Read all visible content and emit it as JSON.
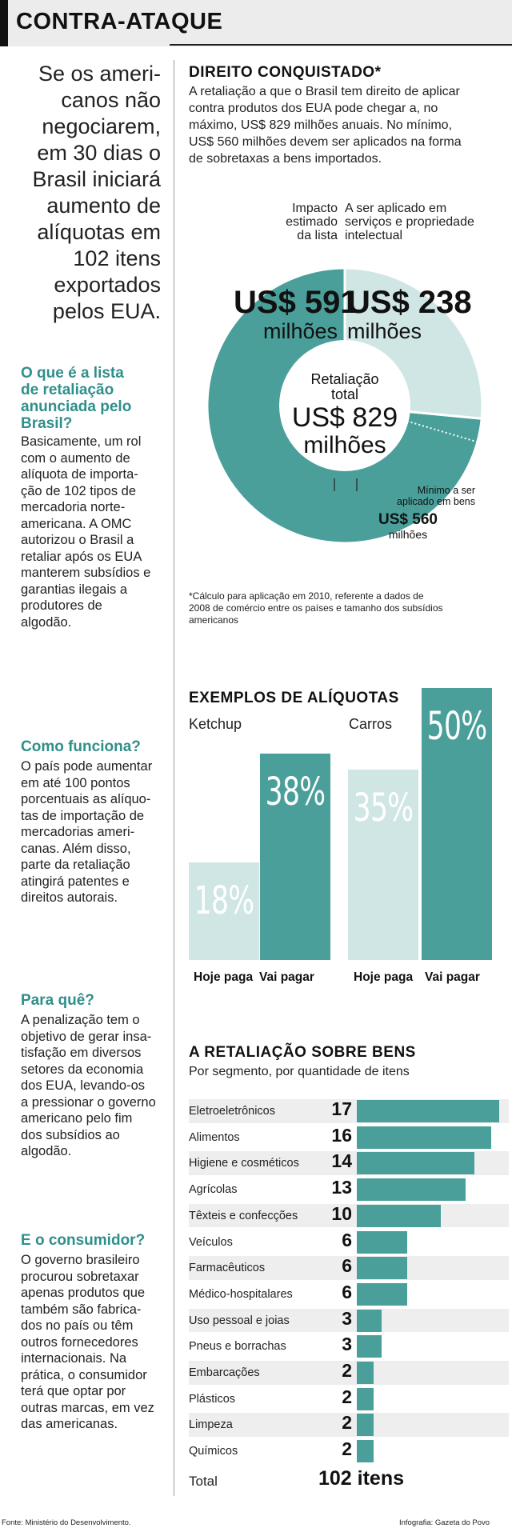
{
  "header": {
    "title": "CONTRA-ATAQUE"
  },
  "lead": [
    "Se os ameri-",
    "canos não",
    "negociarem,",
    "em 30 dias o",
    "Brasil iniciará",
    "aumento de",
    "alíquotas em",
    "102 itens",
    "exportados",
    "pelos EUA."
  ],
  "sections": [
    {
      "title": [
        "O que é a lista",
        "de retaliação",
        "anunciada pelo",
        "Brasil?"
      ],
      "body": [
        "Basicamente, um rol",
        "com o aumento de",
        "alíquota de importa-",
        "ção de 102 tipos de",
        "mercadoria norte-",
        "americana. A OMC",
        "autorizou o Brasil a",
        "retaliar após os EUA",
        "manterem subsídios e",
        "garantias ilegais a",
        "produtores de",
        "algodão."
      ]
    },
    {
      "title": [
        "Como funciona?"
      ],
      "body": [
        "O país pode aumentar",
        "em até 100 pontos",
        "porcentuais as alíquo-",
        "tas de importação de",
        "mercadorias ameri-",
        "canas. Além disso,",
        "parte da retaliação",
        "atingirá patentes e",
        "direitos autorais."
      ]
    },
    {
      "title": [
        "Para quê?"
      ],
      "body": [
        "A penalização tem o",
        "objetivo de gerar insa-",
        "tisfação em diversos",
        "setores da economia",
        "dos EUA, levando-os",
        "a pressionar o governo",
        "americano pelo fim",
        "dos subsídios ao",
        "algodão."
      ]
    },
    {
      "title": [
        "E o consumidor?"
      ],
      "body": [
        "O governo brasileiro",
        "procurou sobretaxar",
        "apenas produtos que",
        "também são fabrica-",
        "dos no país ou têm",
        "outros fornecedores",
        "internacionais. Na",
        "prática, o consumidor",
        "terá que optar por",
        "outras marcas, em vez",
        "das americanas."
      ]
    }
  ],
  "direito": {
    "title": "DIREITO CONQUISTADO*",
    "text": [
      "A retaliação a que o Brasil tem direito de aplicar",
      "contra produtos dos EUA pode chegar a, no",
      "máximo, US$ 829 milhões anuais. No mínimo,",
      "US$ 560 milhões devem ser aplicados na forma",
      "de sobretaxas a bens importados."
    ],
    "label_impacto": [
      "Impacto",
      "estimado",
      "da lista"
    ],
    "label_servicos": [
      "A ser aplicado em",
      "serviços e propriedade",
      "intelectual"
    ],
    "val_591": "US$ 591",
    "val_591_unit": "milhões",
    "val_238": "US$ 238",
    "val_238_unit": "milhões",
    "center_label": [
      "Retaliação",
      "total"
    ],
    "center_value": "US$ 829",
    "center_unit": "milhões",
    "min_label": [
      "Mínimo a ser",
      "aplicado em bens"
    ],
    "val_560": "US$ 560",
    "val_560_unit": "milhões",
    "footnote": [
      "*Cálculo para aplicação em 2010, referente a dados de",
      "2008 de comércio entre os países e tamanho dos subsídios",
      "americanos"
    ]
  },
  "exemplos": {
    "title": "EXEMPLOS DE ALÍQUOTAS",
    "groups": [
      {
        "name": "Ketchup",
        "hoje": "18%",
        "vai": "38%",
        "hoje_v": 18,
        "vai_v": 38
      },
      {
        "name": "Carros",
        "hoje": "35%",
        "vai": "50%",
        "hoje_v": 35,
        "vai_v": 50
      }
    ],
    "cap_hoje": "Hoje paga",
    "cap_vai": "Vai pagar"
  },
  "retaliacao": {
    "title": "A RETALIAÇÃO SOBRE BENS",
    "subtitle": "Por segmento, por quantidade de itens",
    "total_label": "Total",
    "total_value": "102 itens"
  },
  "chart_data": {
    "type": "bar",
    "title": "A RETALIAÇÃO SOBRE BENS",
    "subtitle": "Por segmento, por quantidade de itens",
    "categories": [
      "Eletroeletrônicos",
      "Alimentos",
      "Higiene e cosméticos",
      "Agrícolas",
      "Têxteis e confecções",
      "Veículos",
      "Farmacêuticos",
      "Médico-hospitalares",
      "Uso pessoal e joias",
      "Pneus e borrachas",
      "Embarcações",
      "Plásticos",
      "Limpeza",
      "Químicos"
    ],
    "values": [
      17,
      16,
      14,
      13,
      10,
      6,
      6,
      6,
      3,
      3,
      2,
      2,
      2,
      2
    ]
  },
  "footer": {
    "source": "Fonte: Ministério do Desenvolvimento.",
    "credit": "Infografia: Gazeta do Povo"
  },
  "colors": {
    "teal": "#4a9f9a",
    "teal_light": "#cfe6e5",
    "text": "#1a1a1a"
  }
}
